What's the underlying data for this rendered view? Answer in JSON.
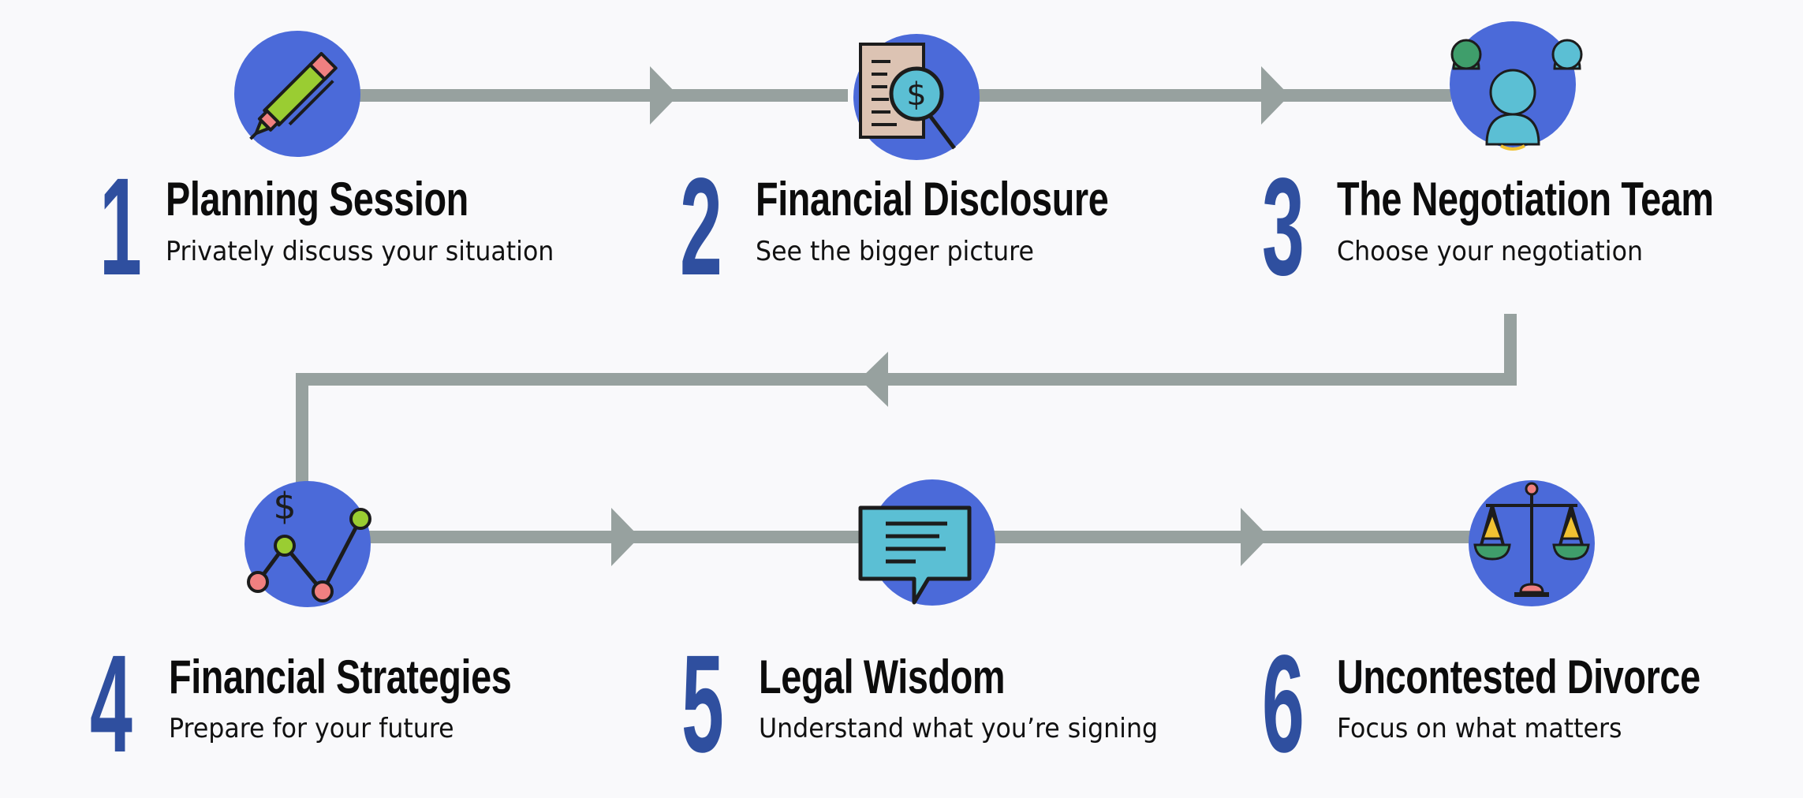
{
  "colors": {
    "connector": "#97a19f",
    "circle": "#4b6ad9",
    "number": "#2f4f9f",
    "title": "#0c0c0c",
    "subtitle": "#111111",
    "background": "#f9f9fb"
  },
  "steps": [
    {
      "number": "1",
      "title": "Planning Session",
      "subtitle": "Privately discuss your situation",
      "icon": "pen-icon"
    },
    {
      "number": "2",
      "title": "Financial Disclosure",
      "subtitle": "See the bigger picture",
      "icon": "document-magnifier-icon"
    },
    {
      "number": "3",
      "title": "The Negotiation Team",
      "subtitle": "Choose your negotiation",
      "icon": "team-people-icon"
    },
    {
      "number": "4",
      "title": "Financial Strategies",
      "subtitle": "Prepare for your future",
      "icon": "line-chart-dollar-icon"
    },
    {
      "number": "5",
      "title": "Legal Wisdom",
      "subtitle": "Understand what you’re signing",
      "icon": "speech-bubble-icon"
    },
    {
      "number": "6",
      "title": "Uncontested Divorce",
      "subtitle": "Focus on what matters",
      "icon": "balance-scale-icon"
    }
  ]
}
